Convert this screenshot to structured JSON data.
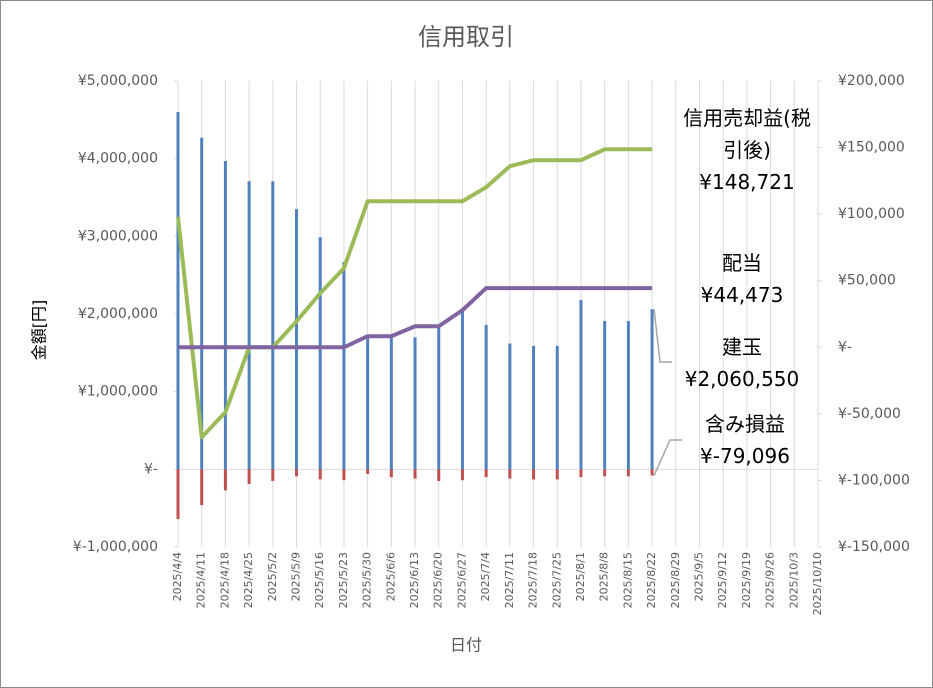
{
  "chart_data": {
    "type": "bar_line",
    "title": "信用取引",
    "x_label": "日付",
    "y_label": "金額[円]",
    "categories": [
      "2025/4/4",
      "2025/4/11",
      "2025/4/18",
      "2025/4/25",
      "2025/5/2",
      "2025/5/9",
      "2025/5/16",
      "2025/5/23",
      "2025/5/30",
      "2025/6/6",
      "2025/6/13",
      "2025/6/20",
      "2025/6/27",
      "2025/7/4",
      "2025/7/11",
      "2025/7/18",
      "2025/7/25",
      "2025/8/1",
      "2025/8/8",
      "2025/8/15",
      "2025/8/22",
      "2025/8/29",
      "2025/9/5",
      "2025/9/12",
      "2025/9/19",
      "2025/9/26",
      "2025/10/3",
      "2025/10/10"
    ],
    "ylim": [
      -1000000,
      5000000
    ],
    "yticks": [
      {
        "value": -1000000,
        "label": "¥-1,000,000"
      },
      {
        "value": 0,
        "label": "¥-"
      },
      {
        "value": 1000000,
        "label": "¥1,000,000"
      },
      {
        "value": 2000000,
        "label": "¥2,000,000"
      },
      {
        "value": 3000000,
        "label": "¥3,000,000"
      },
      {
        "value": 4000000,
        "label": "¥4,000,000"
      },
      {
        "value": 5000000,
        "label": "¥5,000,000"
      }
    ],
    "y2lim": [
      -150000,
      200000
    ],
    "y2ticks": [
      {
        "value": -150000,
        "label": "¥-150,000"
      },
      {
        "value": -100000,
        "label": "¥-100,000"
      },
      {
        "value": -50000,
        "label": "¥-50,000"
      },
      {
        "value": 0,
        "label": "¥-"
      },
      {
        "value": 50000,
        "label": "¥50,000"
      },
      {
        "value": 100000,
        "label": "¥100,000"
      },
      {
        "value": 150000,
        "label": "¥150,000"
      },
      {
        "value": 200000,
        "label": "¥200,000"
      }
    ],
    "series": [
      {
        "name": "信用売却益(税引後)",
        "kind": "line",
        "axis": "y2",
        "color": "#9bbb59",
        "last_label": "¥148,721",
        "values": [
          98000,
          -67600,
          -48800,
          0,
          0,
          19500,
          40600,
          59400,
          109700,
          109700,
          109700,
          109700,
          109700,
          120200,
          136000,
          140500,
          140500,
          140500,
          148721,
          148721,
          148721,
          null,
          null,
          null,
          null,
          null,
          null,
          null
        ]
      },
      {
        "name": "配当",
        "kind": "line",
        "axis": "y2",
        "color": "#8064a2",
        "last_label": "¥44,473",
        "values": [
          0,
          0,
          0,
          0,
          0,
          0,
          0,
          0,
          8300,
          8300,
          15800,
          15800,
          27800,
          44473,
          44473,
          44473,
          44473,
          44473,
          44473,
          44473,
          44473,
          null,
          null,
          null,
          null,
          null,
          null,
          null
        ]
      },
      {
        "name": "建玉",
        "kind": "bar",
        "color": "#4f81bd",
        "last_label": "¥2,060,550",
        "values": [
          4600000,
          4270000,
          3970000,
          3710000,
          3710000,
          3350000,
          2990000,
          2670000,
          1690000,
          1690000,
          1700000,
          1830000,
          2040000,
          1860000,
          1620000,
          1590000,
          1590000,
          2180000,
          1910000,
          1910000,
          2060550,
          null,
          null,
          null,
          null,
          null,
          null,
          null
        ]
      },
      {
        "name": "含み損益",
        "kind": "bar",
        "color": "#c0504d",
        "last_label": "¥-79,096",
        "values": [
          -640000,
          -460000,
          -270000,
          -190000,
          -150000,
          -90000,
          -130000,
          -140000,
          -60000,
          -100000,
          -120000,
          -150000,
          -140000,
          -100000,
          -120000,
          -130000,
          -130000,
          -100000,
          -90000,
          -90000,
          -79096,
          null,
          null,
          null,
          null,
          null,
          null,
          null
        ]
      }
    ]
  }
}
